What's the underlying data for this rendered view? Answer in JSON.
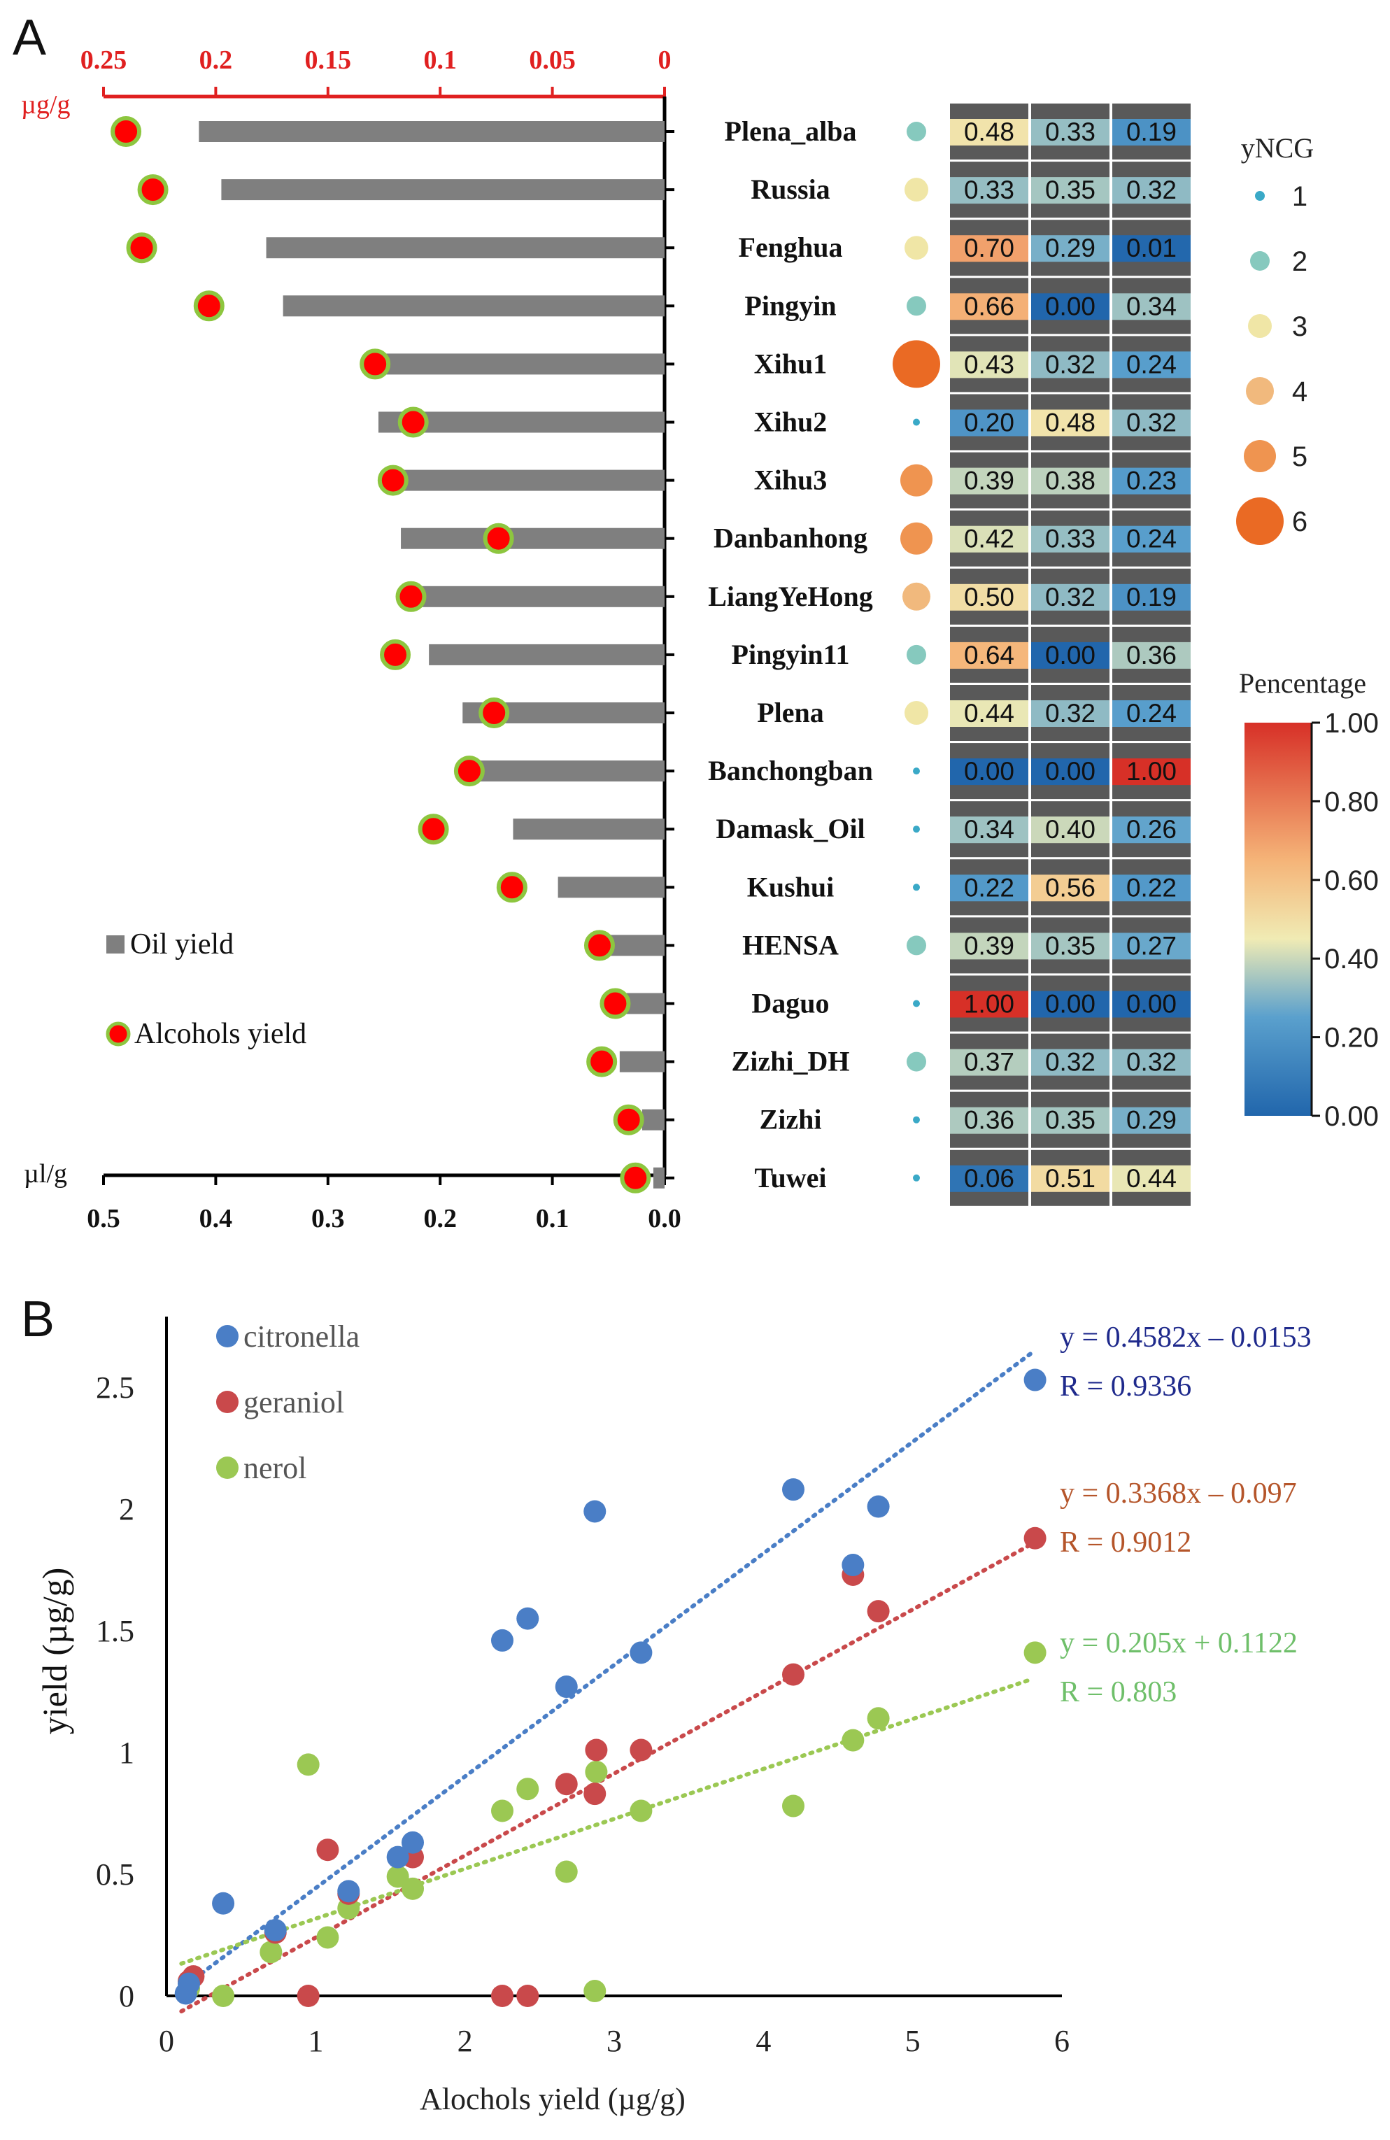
{
  "panel_labels": {
    "a": "A",
    "b": "B"
  },
  "colors": {
    "top_axis": "#e02020",
    "oil_bar": "#7f7f7f",
    "alcohol_fill": "#ff0000",
    "alcohol_ring": "#8dc63f",
    "cell_bg": "#595959",
    "citronella": "#4a7ec6",
    "geraniol": "#c9494b",
    "nerol": "#9bc853",
    "eq_citronella": "#1f2a8c",
    "eq_geraniol": "#b5552a",
    "eq_nerol": "#6fbf6a",
    "ncg_colors": [
      "#3aa9c7",
      "#86c9be",
      "#f0e6a6",
      "#f1b97d",
      "#ef9450",
      "#ea6a24"
    ]
  },
  "chart_data": [
    {
      "type": "bar",
      "panel": "A",
      "categories": [
        "Plena_alba",
        "Russia",
        "Fenghua",
        "Pingyin",
        "Xihu1",
        "Xihu2",
        "Xihu3",
        "Danbanhong",
        "LiangYeHong",
        "Pingyin11",
        "Plena",
        "Banchongban",
        "Damask_Oil",
        "Kushui",
        "HENSA",
        "Daguo",
        "Zizhi_DH",
        "Zizhi",
        "Tuwei"
      ],
      "series": [
        {
          "name": "Oil yield",
          "unit": "µl/g",
          "values": [
            0.415,
            0.395,
            0.355,
            0.34,
            0.255,
            0.255,
            0.24,
            0.235,
            0.225,
            0.21,
            0.18,
            0.175,
            0.135,
            0.095,
            0.055,
            0.045,
            0.04,
            0.02,
            0.01
          ]
        },
        {
          "name": "Alcohols yield",
          "unit": "µg/g",
          "values": [
            0.24,
            0.228,
            0.233,
            0.203,
            0.129,
            0.112,
            0.121,
            0.074,
            0.113,
            0.12,
            0.076,
            0.087,
            0.103,
            0.068,
            0.029,
            0.022,
            0.028,
            0.016,
            0.013
          ]
        }
      ],
      "x_bottom": {
        "label": "µl/g",
        "lim": [
          0.5,
          0.0
        ],
        "ticks": [
          "0.5",
          "0.4",
          "0.3",
          "0.2",
          "0.1",
          "0.0"
        ]
      },
      "x_top": {
        "label": "µg/g",
        "lim": [
          0.25,
          0
        ],
        "ticks": [
          "0.25",
          "0.2",
          "0.15",
          "0.1",
          "0.05",
          "0"
        ]
      },
      "legend": [
        "Oil yield",
        "Alcohols yield"
      ],
      "legend_position": "bottom-left"
    },
    {
      "type": "heatmap",
      "panel": "A",
      "rows": [
        "Plena_alba",
        "Russia",
        "Fenghua",
        "Pingyin",
        "Xihu1",
        "Xihu2",
        "Xihu3",
        "Danbanhong",
        "LiangYeHong",
        "Pingyin11",
        "Plena",
        "Banchongban",
        "Damask_Oil",
        "Kushui",
        "HENSA",
        "Daguo",
        "Zizhi_DH",
        "Zizhi",
        "Tuwei"
      ],
      "ncg": [
        2,
        3,
        3,
        2,
        6,
        1,
        5,
        5,
        4,
        2,
        3,
        1,
        1,
        1,
        2,
        1,
        2,
        1,
        1
      ],
      "values": [
        [
          "0.48",
          "0.33",
          "0.19"
        ],
        [
          "0.33",
          "0.35",
          "0.32"
        ],
        [
          "0.70",
          "0.29",
          "0.01"
        ],
        [
          "0.66",
          "0.00",
          "0.34"
        ],
        [
          "0.43",
          "0.32",
          "0.24"
        ],
        [
          "0.20",
          "0.48",
          "0.32"
        ],
        [
          "0.39",
          "0.38",
          "0.23"
        ],
        [
          "0.42",
          "0.33",
          "0.24"
        ],
        [
          "0.50",
          "0.32",
          "0.19"
        ],
        [
          "0.64",
          "0.00",
          "0.36"
        ],
        [
          "0.44",
          "0.32",
          "0.24"
        ],
        [
          "0.00",
          "0.00",
          "1.00"
        ],
        [
          "0.34",
          "0.40",
          "0.26"
        ],
        [
          "0.22",
          "0.56",
          "0.22"
        ],
        [
          "0.39",
          "0.35",
          "0.27"
        ],
        [
          "1.00",
          "0.00",
          "0.00"
        ],
        [
          "0.37",
          "0.32",
          "0.32"
        ],
        [
          "0.36",
          "0.35",
          "0.29"
        ],
        [
          "0.06",
          "0.51",
          "0.44"
        ]
      ],
      "ncg_legend": {
        "title": "yNCG",
        "items": [
          "1",
          "2",
          "3",
          "4",
          "5",
          "6"
        ]
      },
      "colorbar": {
        "title": "Pencentage",
        "ticks": [
          "1.00",
          "0.80",
          "0.60",
          "0.40",
          "0.20",
          "0.00"
        ],
        "range": [
          0,
          1
        ]
      }
    },
    {
      "type": "scatter",
      "panel": "B",
      "xlabel": "Alochols  yield (µg/g)",
      "ylabel": "yield (µg/g)",
      "xlim": [
        0,
        6
      ],
      "ylim": [
        0,
        2.7
      ],
      "xticks": [
        "0",
        "1",
        "2",
        "3",
        "4",
        "5",
        "6"
      ],
      "yticks": [
        "0",
        "0.5",
        "1",
        "1.5",
        "2",
        "2.5"
      ],
      "series": [
        {
          "name": "citronella",
          "x": [
            0.13,
            0.15,
            0.38,
            0.73,
            1.22,
            1.55,
            1.65,
            2.25,
            2.42,
            2.68,
            2.87,
            3.18,
            4.2,
            4.6,
            4.77,
            5.82
          ],
          "y": [
            0.01,
            0.05,
            0.38,
            0.27,
            0.43,
            0.57,
            0.63,
            1.46,
            1.55,
            1.27,
            1.99,
            1.41,
            2.08,
            1.77,
            2.01,
            2.53
          ],
          "trend": {
            "slope": 0.4582,
            "intercept": -0.0153
          },
          "equation": "y = 0.4582x – 0.0153",
          "r": "R = 0.9336"
        },
        {
          "name": "geraniol",
          "x": [
            0.15,
            0.18,
            0.73,
            0.95,
            1.08,
            1.22,
            1.65,
            2.25,
            2.42,
            2.68,
            2.87,
            2.88,
            3.18,
            4.2,
            4.6,
            4.77,
            5.82
          ],
          "y": [
            0.06,
            0.08,
            0.26,
            0.0,
            0.6,
            0.42,
            0.57,
            0.0,
            0.0,
            0.87,
            0.83,
            1.01,
            1.01,
            1.32,
            1.73,
            1.58,
            1.88
          ],
          "trend": {
            "slope": 0.3368,
            "intercept": -0.097
          },
          "equation": "y = 0.3368x – 0.097",
          "r": "R = 0.9012"
        },
        {
          "name": "nerol",
          "x": [
            0.15,
            0.38,
            0.7,
            0.95,
            1.08,
            1.22,
            1.55,
            1.65,
            2.25,
            2.42,
            2.68,
            2.87,
            2.88,
            3.18,
            4.2,
            4.6,
            4.77,
            5.82
          ],
          "y": [
            0.03,
            0.0,
            0.18,
            0.95,
            0.24,
            0.36,
            0.49,
            0.44,
            0.76,
            0.85,
            0.51,
            0.02,
            0.92,
            0.76,
            0.78,
            1.05,
            1.14,
            1.41
          ],
          "trend": {
            "slope": 0.205,
            "intercept": 0.1122
          },
          "equation": "y = 0.205x + 0.1122",
          "r": "R = 0.803"
        }
      ],
      "legend": [
        "citronella",
        "geraniol",
        "nerol"
      ],
      "legend_position": "top-left"
    }
  ]
}
